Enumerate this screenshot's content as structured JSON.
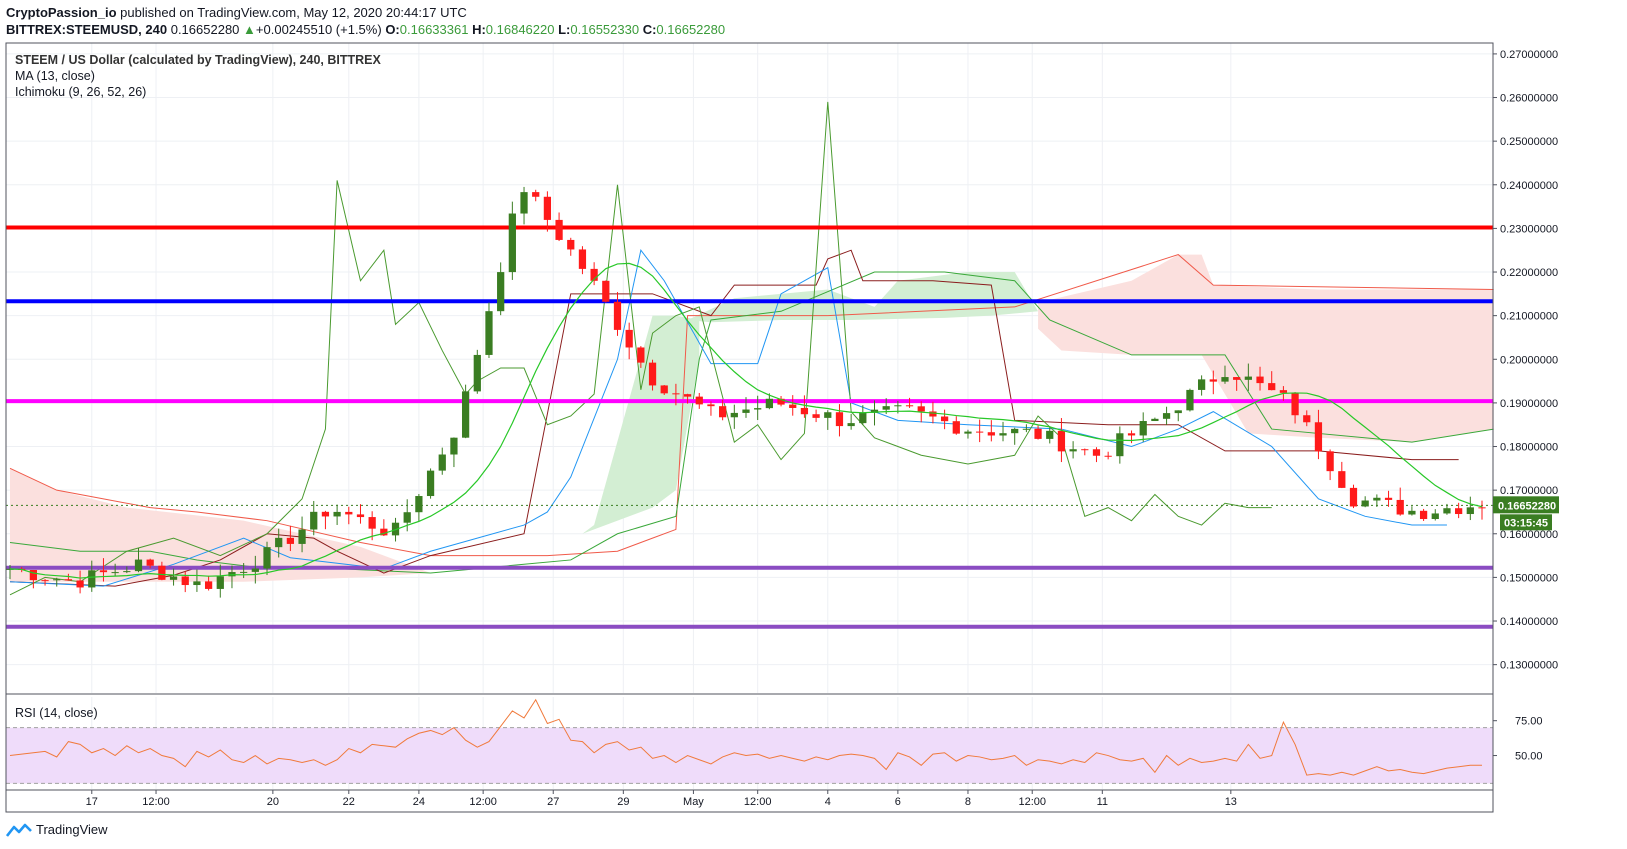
{
  "header": {
    "author": "CryptoPassion_io",
    "published": "published on TradingView.com, May 12, 2020 20:44:17 UTC",
    "symbol": "BITTREX:STEEMUSD, 240",
    "price": "0.16652280",
    "change": "+0.00245510 (+1.5%)",
    "o_label": "O:",
    "o_value": "0.16633361",
    "h_label": "H:",
    "h_value": "0.16846220",
    "l_label": "L:",
    "l_value": "0.16552330",
    "c_label": "C:",
    "c_value": "0.16652280"
  },
  "legend": {
    "title": "STEEM / US Dollar (calculated by TradingView), 240, BITTREX",
    "ma": "MA (13, close)",
    "ichimoku": "Ichimoku (9, 26, 52, 26)"
  },
  "rsi_label": "RSI (14, close)",
  "footer": {
    "brand": "TradingView"
  },
  "price_tag": {
    "value": "0.16652280",
    "countdown": "03:15:45"
  },
  "colors": {
    "up": "#3a7d22",
    "down": "#ff1a1a",
    "ma": "#28c828",
    "tenkan": "#2196f3",
    "kijun": "#8b1e1e",
    "chikou": "#4a9a2f",
    "cloud_bull": "#d3eed3",
    "cloud_bear": "#fbe0de",
    "line_red": "#ff0000",
    "line_blue": "#0000ff",
    "line_magenta": "#ff00ff",
    "line_purple": "#8a4cc2",
    "rsi_line": "#f07a3c",
    "rsi_band": "#efdcfa"
  },
  "chart_data": [
    {
      "type": "candlestick",
      "title": "STEEM / US Dollar (calculated by TradingView), 240, BITTREX",
      "x_ticks": [
        "17",
        "12:00",
        "20",
        "22",
        "24",
        "12:00",
        "27",
        "29",
        "May",
        "12:00",
        "4",
        "6",
        "8",
        "12:00",
        "11",
        "13"
      ],
      "y_ticks": [
        "0.27000000",
        "0.26000000",
        "0.25000000",
        "0.24000000",
        "0.23000000",
        "0.22000000",
        "0.21000000",
        "0.20000000",
        "0.19000000",
        "0.18000000",
        "0.17000000",
        "0.16000000",
        "0.15000000",
        "0.14000000",
        "0.13000000"
      ],
      "ylim": [
        0.1235,
        0.2725
      ],
      "horizontal_levels": [
        {
          "value": 0.2302,
          "color": "#ff0000"
        },
        {
          "value": 0.2133,
          "color": "#0000ff"
        },
        {
          "value": 0.1904,
          "color": "#ff00ff"
        },
        {
          "value": 0.1522,
          "color": "#8a4cc2"
        },
        {
          "value": 0.1387,
          "color": "#8a4cc2"
        }
      ],
      "current_price": 0.1665228,
      "key_closes": [
        0.152,
        0.149,
        0.153,
        0.148,
        0.155,
        0.166,
        0.16,
        0.185,
        0.24,
        0.22,
        0.196,
        0.187,
        0.19,
        0.186,
        0.188,
        0.184,
        0.183,
        0.178,
        0.187,
        0.198,
        0.19,
        0.168,
        0.165,
        0.167
      ],
      "series": [
        {
          "name": "MA (13, close)"
        },
        {
          "name": "Ichimoku (9, 26, 52, 26)"
        }
      ]
    },
    {
      "type": "line",
      "title": "RSI (14, close)",
      "y_ticks": [
        "75.00",
        "50.00"
      ],
      "ylim": [
        26,
        92
      ],
      "band": [
        30,
        70
      ],
      "values": [
        50,
        51,
        52,
        53,
        49,
        60,
        58,
        52,
        55,
        50,
        57,
        52,
        55,
        50,
        48,
        42,
        53,
        49,
        54,
        47,
        45,
        50,
        44,
        48,
        47,
        45,
        47,
        43,
        47,
        55,
        52,
        58,
        57,
        56,
        62,
        66,
        68,
        65,
        70,
        61,
        56,
        60,
        71,
        82,
        77,
        90,
        73,
        76,
        61,
        60,
        52,
        58,
        60,
        54,
        56,
        48,
        50,
        45,
        50,
        47,
        44,
        49,
        52,
        50,
        51,
        48,
        50,
        48,
        46,
        49,
        47,
        50,
        51,
        50,
        48,
        40,
        52,
        49,
        43,
        51,
        52,
        46,
        50,
        49,
        47,
        48,
        50,
        43,
        47,
        46,
        44,
        47,
        45,
        52,
        50,
        47,
        46,
        48,
        38,
        50,
        43,
        48,
        45,
        46,
        48,
        46,
        58,
        48,
        50,
        74,
        58,
        36,
        37,
        36,
        38,
        36,
        39,
        42,
        39,
        40,
        38,
        37,
        39,
        41,
        42,
        43,
        43
      ]
    }
  ]
}
